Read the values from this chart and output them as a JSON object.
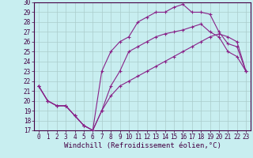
{
  "xlabel": "Windchill (Refroidissement éolien,°C)",
  "xlim": [
    -0.5,
    23.5
  ],
  "ylim": [
    17,
    30
  ],
  "xticks": [
    0,
    1,
    2,
    3,
    4,
    5,
    6,
    7,
    8,
    9,
    10,
    11,
    12,
    13,
    14,
    15,
    16,
    17,
    18,
    19,
    20,
    21,
    22,
    23
  ],
  "yticks": [
    17,
    18,
    19,
    20,
    21,
    22,
    23,
    24,
    25,
    26,
    27,
    28,
    29,
    30
  ],
  "bg_color": "#c8eef0",
  "line_color": "#882288",
  "grid_color": "#aacccc",
  "line1_x": [
    0,
    1,
    2,
    3,
    4,
    5,
    6,
    7,
    8,
    9,
    10,
    11,
    12,
    13,
    14,
    15,
    16,
    17,
    18,
    19,
    20,
    21,
    22,
    23
  ],
  "line1_y": [
    21.5,
    20.0,
    19.5,
    19.5,
    18.5,
    17.5,
    17.0,
    19.0,
    21.5,
    23.0,
    25.0,
    25.5,
    26.0,
    26.5,
    26.8,
    27.0,
    27.2,
    27.5,
    27.8,
    27.0,
    26.5,
    25.0,
    24.5,
    23.0
  ],
  "line2_x": [
    0,
    1,
    2,
    3,
    4,
    5,
    6,
    7,
    8,
    9,
    10,
    11,
    12,
    13,
    14,
    15,
    16,
    17,
    18,
    19,
    20,
    21,
    22,
    23
  ],
  "line2_y": [
    21.5,
    20.0,
    19.5,
    19.5,
    18.5,
    17.5,
    17.0,
    23.0,
    25.0,
    26.0,
    26.5,
    28.0,
    28.5,
    29.0,
    29.0,
    29.5,
    29.8,
    29.0,
    29.0,
    28.8,
    27.0,
    25.8,
    25.5,
    23.0
  ],
  "line3_x": [
    0,
    1,
    2,
    3,
    4,
    5,
    6,
    7,
    8,
    9,
    10,
    11,
    12,
    13,
    14,
    15,
    16,
    17,
    18,
    19,
    20,
    21,
    22,
    23
  ],
  "line3_y": [
    21.5,
    20.0,
    19.5,
    19.5,
    18.5,
    17.5,
    17.0,
    19.0,
    20.5,
    21.5,
    22.0,
    22.5,
    23.0,
    23.5,
    24.0,
    24.5,
    25.0,
    25.5,
    26.0,
    26.5,
    26.8,
    26.5,
    26.0,
    23.0
  ],
  "tick_fontsize": 5.5,
  "xlabel_fontsize": 6.5,
  "spine_color": "#440044",
  "tick_color": "#440044"
}
